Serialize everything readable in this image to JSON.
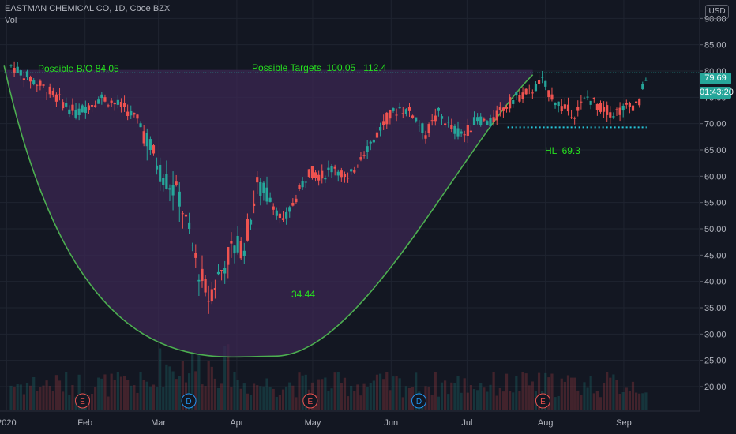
{
  "header": {
    "title": "EASTMAN CHEMICAL CO, 1D, Cboe BZX",
    "indicator": "Vol",
    "currency": "USD"
  },
  "price_labels": {
    "last_price": "79.69",
    "countdown": "01:43:20"
  },
  "annotations": {
    "breakout": "Possible B/O 84.05",
    "targets": "Possible Targets  100.05   112.4",
    "cup_low": "34.44",
    "higher_low": "HL  69.3"
  },
  "events": [
    {
      "label": "E",
      "date": "2020-01-31",
      "color": "#ef5350"
    },
    {
      "label": "D",
      "date": "2020-03-13",
      "color": "#2196f3"
    },
    {
      "label": "E",
      "date": "2020-04-30",
      "color": "#ef5350"
    },
    {
      "label": "D",
      "date": "2020-06-12",
      "color": "#2196f3"
    },
    {
      "label": "E",
      "date": "2020-07-31",
      "color": "#ef5350"
    }
  ],
  "colors": {
    "background": "#131722",
    "up": "#26a69a",
    "down": "#ef5350",
    "cup_fill": "#3b2752",
    "cup_line": "#4caf50",
    "annotation": "#27e11f",
    "support_line": "#26c6da"
  },
  "chart_data": {
    "type": "candlestick",
    "title": "EASTMAN CHEMICAL CO, 1D, Cboe BZX",
    "x_axis": {
      "labels": [
        "2020",
        "Feb",
        "Mar",
        "Apr",
        "May",
        "Jun",
        "Jul",
        "Aug",
        "Sep"
      ],
      "dates": [
        "2020-01-01",
        "2020-02-01",
        "2020-03-01",
        "2020-04-01",
        "2020-05-01",
        "2020-06-01",
        "2020-07-01",
        "2020-08-01",
        "2020-09-01"
      ],
      "range": [
        "2019-12-30",
        "2020-09-11"
      ]
    },
    "y_axis": {
      "ticks": [
        90,
        85,
        80,
        75,
        70,
        65,
        60,
        55,
        50,
        45,
        40,
        35,
        30,
        25,
        20
      ],
      "tick_labels": [
        "90.00",
        "85.00",
        "80.00",
        "75.00",
        "70.00",
        "65.00",
        "60.00",
        "55.00",
        "50.00",
        "45.00",
        "40.00",
        "35.00",
        "30.00",
        "25.00",
        "20.00"
      ],
      "range": [
        15.5,
        93.5
      ],
      "position": "right"
    },
    "grid": true,
    "pattern": {
      "type": "cup",
      "start": [
        "2019-12-31",
        81.0
      ],
      "bottom": [
        "2020-04-16",
        25.8
      ],
      "end": [
        "2020-07-27",
        79.3
      ],
      "rim_price": 80.2
    },
    "support_line": {
      "price": 69.3,
      "from": "2020-07-17",
      "to": "2020-09-10"
    },
    "resistance_line": {
      "price": 79.69,
      "from": "2019-12-31",
      "to": "2020-09-11"
    },
    "volume_scale": [
      0,
      30
    ]
  }
}
